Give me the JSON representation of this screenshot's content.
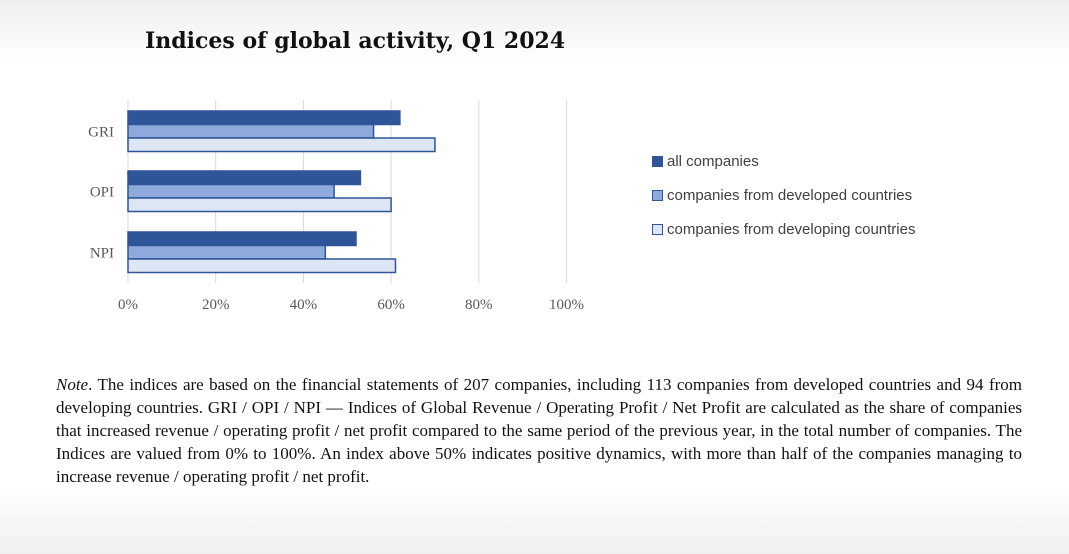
{
  "title": "Indices of global activity, Q1 2024",
  "note": {
    "label": "Note",
    "text": ". The indices are based on the financial statements of 207 companies, including 113 companies from developed countries and 94 from developing countries. GRI / OPI / NPI — Indices of Global Revenue / Operating Profit / Net Profit are calculated as the share of companies that increased revenue / operating profit / net profit compared to the same period of the previous year, in the total number of companies. The Indices are valued from 0% to 100%. An index above 50% indicates positive dynamics, with more than half of the companies managing to increase revenue / operating profit / net profit."
  },
  "chart_data": {
    "type": "bar",
    "orientation": "horizontal",
    "title": "Indices of global activity, Q1 2024",
    "categories": [
      "GRI",
      "OPI",
      "NPI"
    ],
    "series": [
      {
        "name": "all companies",
        "values": [
          62,
          53,
          52
        ],
        "color": "#2e5597"
      },
      {
        "name": "companies from developed countries",
        "values": [
          56,
          47,
          45
        ],
        "color": "#8ea9db"
      },
      {
        "name": "companies from developing countries",
        "values": [
          70,
          60,
          61
        ],
        "color": "#dce6f4"
      }
    ],
    "xlim": [
      0,
      100
    ],
    "xticks": [
      "0%",
      "20%",
      "40%",
      "60%",
      "80%",
      "100%"
    ],
    "tick_values": [
      0,
      20,
      40,
      60,
      80,
      100
    ],
    "grid": true,
    "legend_position": "right",
    "border_color": "#2e5597"
  }
}
